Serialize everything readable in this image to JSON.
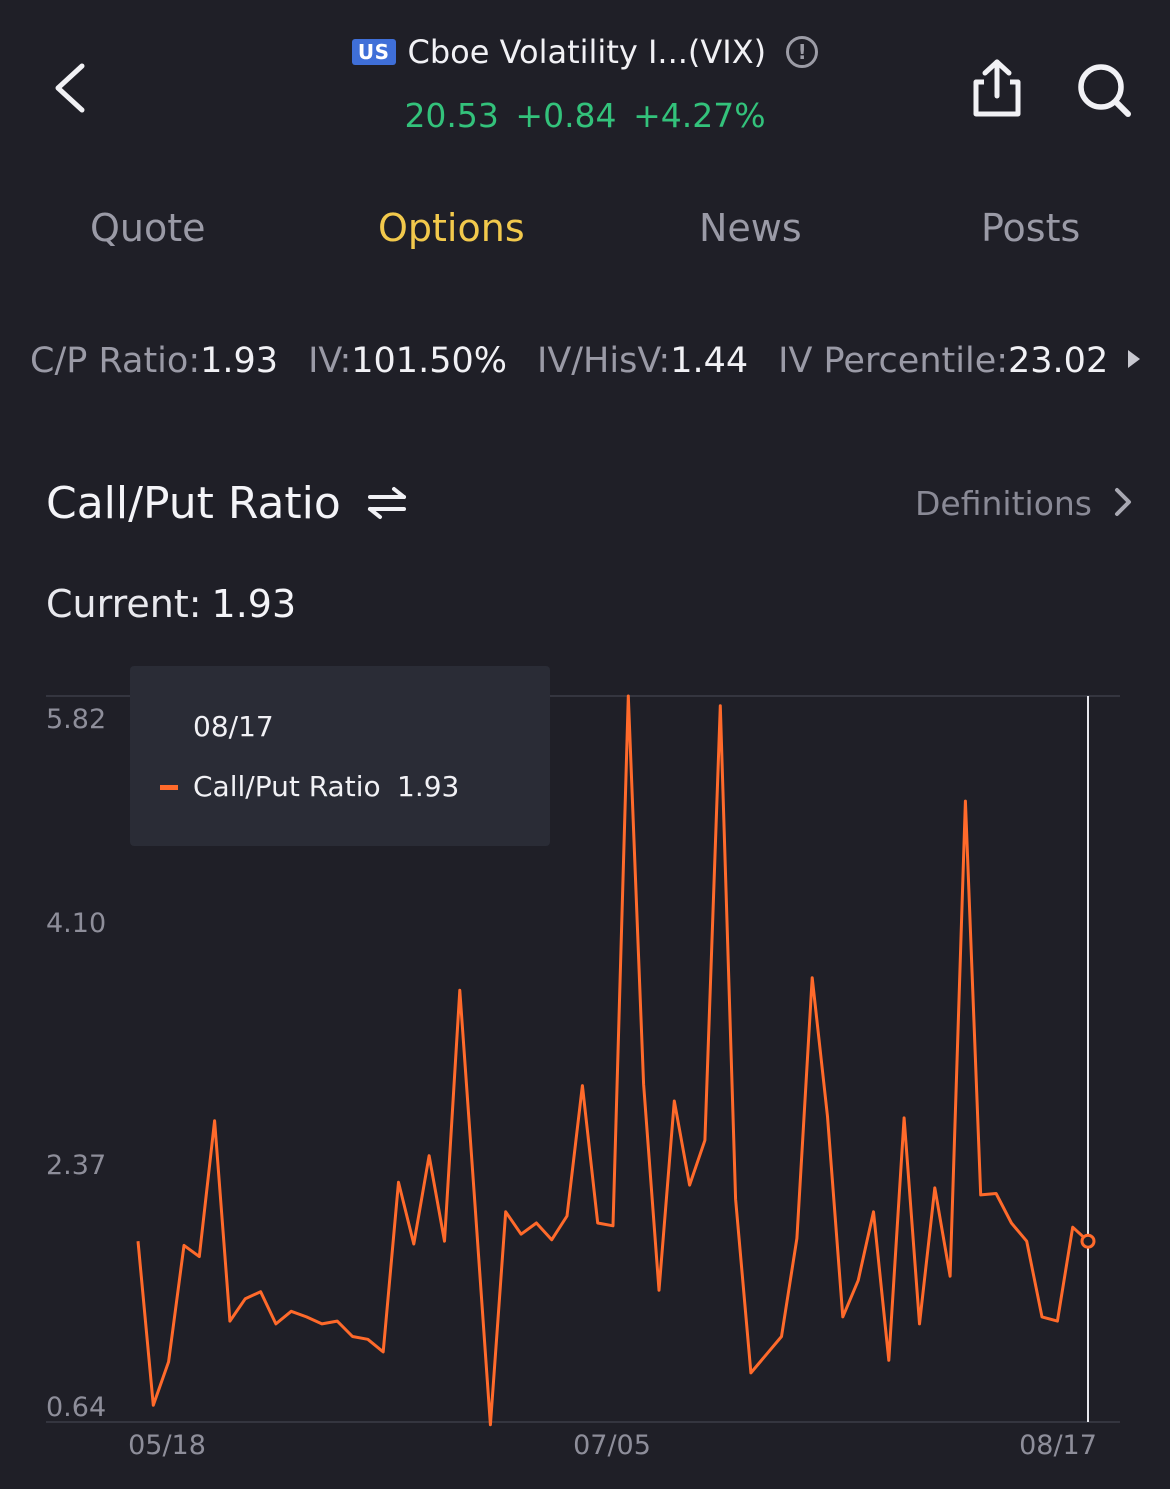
{
  "header": {
    "market_badge": "US",
    "title": "Cboe Volatility I...(VIX)",
    "price": "20.53",
    "change": "+0.84",
    "change_pct": "+4.27%",
    "price_color": "#33c27b",
    "icons": [
      "back-icon",
      "info-icon",
      "share-icon",
      "search-icon"
    ]
  },
  "tabs": [
    {
      "label": "Quote",
      "active": false
    },
    {
      "label": "Options",
      "active": true
    },
    {
      "label": "News",
      "active": false
    },
    {
      "label": "Posts",
      "active": false
    }
  ],
  "metrics": [
    {
      "label": "C/P Ratio:",
      "value": "1.93"
    },
    {
      "label": "IV:",
      "value": "101.50%"
    },
    {
      "label": "IV/HisV:",
      "value": "1.44"
    },
    {
      "label": "IV Percentile:",
      "value": "23.02"
    }
  ],
  "section": {
    "title": "Call/Put Ratio",
    "definitions_label": "Definitions",
    "current_label": "Current:",
    "current_value": "1.93"
  },
  "tooltip": {
    "date": "08/17",
    "series_label": "Call/Put Ratio",
    "value": "1.93"
  },
  "colors": {
    "background": "#1f1f27",
    "accent_tab": "#f2c94c",
    "line": "#ff6a2b"
  },
  "chart_data": {
    "type": "line",
    "y_ticks": [
      "5.82",
      "4.10",
      "2.37",
      "0.64"
    ],
    "ylim": [
      0.64,
      5.82
    ],
    "x_ticks": [
      "05/18",
      "07/05",
      "08/17"
    ],
    "series": [
      {
        "name": "Call/Put Ratio",
        "color": "#ff6a2b",
        "values": [
          1.93,
          0.76,
          1.07,
          1.9,
          1.82,
          2.79,
          1.36,
          1.52,
          1.57,
          1.34,
          1.43,
          1.39,
          1.34,
          1.36,
          1.25,
          1.23,
          1.14,
          2.35,
          1.91,
          2.54,
          1.93,
          3.72,
          2.18,
          0.62,
          2.14,
          1.98,
          2.06,
          1.94,
          2.11,
          3.04,
          2.06,
          2.04,
          5.82,
          3.05,
          1.58,
          2.93,
          2.33,
          2.65,
          5.75,
          2.23,
          0.99,
          1.12,
          1.25,
          1.95,
          3.81,
          2.82,
          1.39,
          1.65,
          2.14,
          1.08,
          2.81,
          1.34,
          2.31,
          1.68,
          5.07,
          2.26,
          2.27,
          2.06,
          1.93,
          1.39,
          1.36,
          2.03,
          1.93
        ]
      }
    ]
  }
}
